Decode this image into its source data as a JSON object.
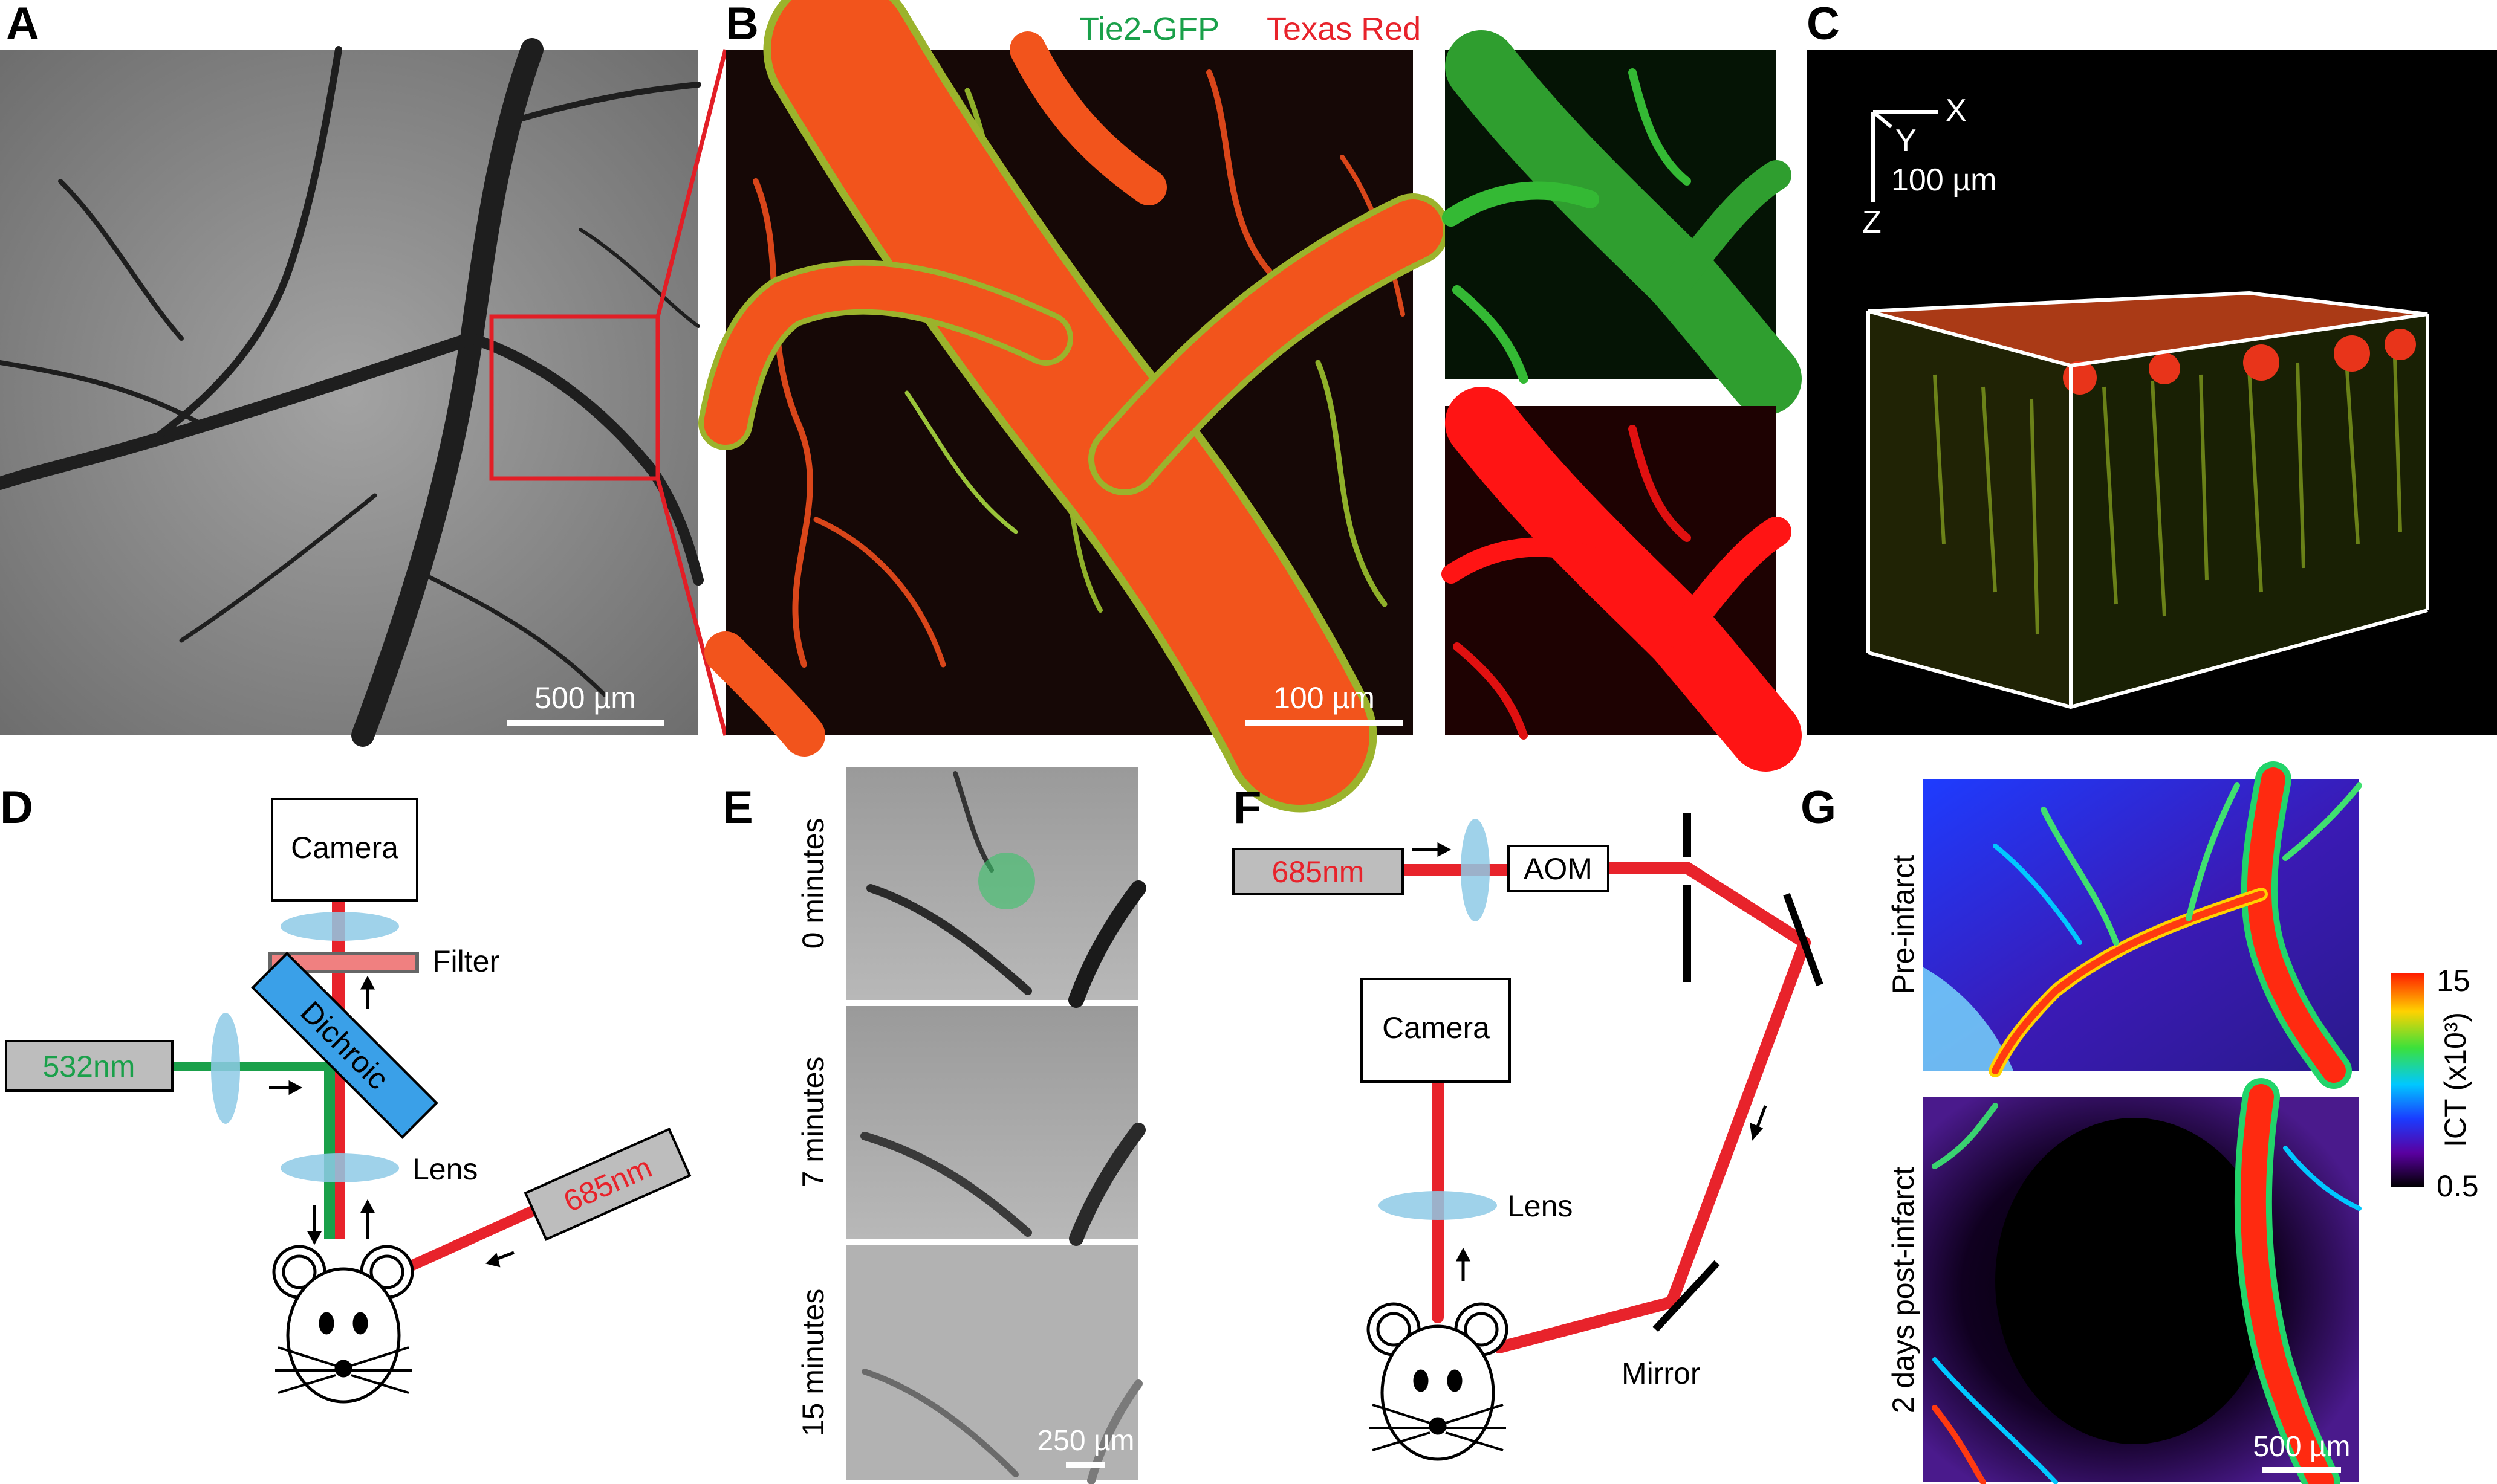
{
  "panels": {
    "A": {
      "letter": "A",
      "scale_bar": "500 µm"
    },
    "B": {
      "letter": "B",
      "channel_green": "Tie2-GFP",
      "channel_red": "Texas Red",
      "scale_bar": "100 µm"
    },
    "C": {
      "letter": "C",
      "axis_x": "X",
      "axis_y": "Y",
      "axis_z": "Z",
      "scale_bar": "100 µm"
    },
    "D": {
      "letter": "D",
      "camera": "Camera",
      "filter": "Filter",
      "dichroic": "Dichroic",
      "laser_532": "532nm",
      "lens": "Lens",
      "laser_685": "685nm"
    },
    "E": {
      "letter": "E",
      "time_0": "0 minutes",
      "time_7": "7 minutes",
      "time_15": "15 minutes",
      "scale_bar": "250 µm"
    },
    "F": {
      "letter": "F",
      "laser_685": "685nm",
      "aom": "AOM",
      "camera": "Camera",
      "lens": "Lens",
      "mirror": "Mirror"
    },
    "G": {
      "letter": "G",
      "pre_label": "Pre-infarct",
      "post_label": "2 days post-infarct",
      "colorbar_label": "ICT (x10³)",
      "colorbar_max": "15",
      "colorbar_min": "0.5",
      "scale_bar": "500 µm"
    }
  },
  "colors": {
    "laser_red": "#e8232b",
    "laser_green": "#1aa04a",
    "optic_blue": "#8ecae6",
    "dichroic_blue": "#3aa0e8",
    "laser_box_grey": "#bdbdbd"
  }
}
